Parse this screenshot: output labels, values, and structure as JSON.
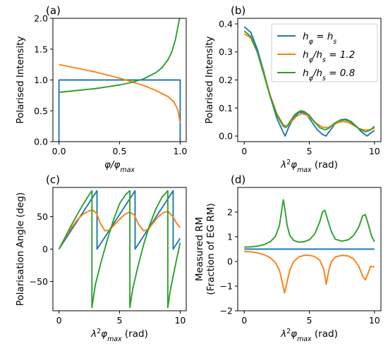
{
  "colors": {
    "blue": "#1f77b4",
    "orange": "#ff7f0e",
    "green": "#2ca02c"
  },
  "chart_data": [
    {
      "panel": "(a)",
      "type": "line",
      "xlabel": "φ/φ_max",
      "ylabel": "Polarised Intensity",
      "xlim": [
        -0.05,
        1.05
      ],
      "ylim": [
        0,
        2.0
      ],
      "xticks": [
        0.0,
        0.5,
        1.0
      ],
      "xticklabels": [
        "0.0",
        "0.5",
        "1.0"
      ],
      "yticks": [
        0.0,
        0.5,
        1.0,
        1.5,
        2.0
      ],
      "yticklabels": [
        "0.0",
        "0.5",
        "1.0",
        "1.5",
        "2.0"
      ],
      "grid": false,
      "series": [
        {
          "color": "blue",
          "x": [
            0,
            0,
            1,
            1
          ],
          "y": [
            0,
            1.0,
            1.0,
            0
          ]
        },
        {
          "color": "orange",
          "x": [
            0,
            0.1,
            0.2,
            0.3,
            0.4,
            0.5,
            0.6,
            0.7,
            0.8,
            0.9,
            0.95,
            0.98,
            1.0
          ],
          "y": [
            1.25,
            1.21,
            1.17,
            1.13,
            1.08,
            1.03,
            0.97,
            0.91,
            0.83,
            0.73,
            0.64,
            0.52,
            0.3
          ]
        },
        {
          "color": "green",
          "x": [
            0,
            0.1,
            0.2,
            0.3,
            0.4,
            0.5,
            0.6,
            0.7,
            0.8,
            0.85,
            0.9,
            0.93,
            0.96,
            0.98,
            1.0
          ],
          "y": [
            0.8,
            0.82,
            0.84,
            0.86,
            0.89,
            0.92,
            0.96,
            1.02,
            1.12,
            1.2,
            1.33,
            1.45,
            1.65,
            1.85,
            2.05
          ]
        }
      ]
    },
    {
      "panel": "(b)",
      "type": "line",
      "xlabel": "λ²φ_max (rad)",
      "ylabel": "Polarised Intensity",
      "xlim": [
        -0.5,
        10.5
      ],
      "ylim": [
        -0.02,
        0.42
      ],
      "xticks": [
        0,
        5,
        10
      ],
      "xticklabels": [
        "0",
        "5",
        "10"
      ],
      "yticks": [
        0.0,
        0.1,
        0.2,
        0.3,
        0.4
      ],
      "yticklabels": [
        "0.0",
        "0.1",
        "0.2",
        "0.3",
        "0.4"
      ],
      "grid": false,
      "legend": {
        "position": "top-right",
        "entries": [
          {
            "color": "blue",
            "label": "hφ = hs"
          },
          {
            "color": "orange",
            "label": "hφ/hs = 1.2"
          },
          {
            "color": "green",
            "label": "hφ/hs = 0.8"
          }
        ]
      },
      "series": [
        {
          "color": "blue",
          "x": [
            0,
            0.5,
            1.0,
            1.5,
            2.0,
            2.5,
            3.0,
            3.14,
            3.4,
            3.8,
            4.2,
            4.5,
            4.8,
            5.2,
            5.6,
            6.0,
            6.28,
            6.6,
            7.0,
            7.4,
            7.8,
            8.2,
            8.6,
            9.0,
            9.42,
            9.7,
            10.0
          ],
          "y": [
            0.39,
            0.37,
            0.31,
            0.23,
            0.14,
            0.064,
            0.013,
            0.0,
            0.03,
            0.065,
            0.084,
            0.085,
            0.076,
            0.05,
            0.023,
            0.006,
            0.0,
            0.02,
            0.045,
            0.058,
            0.06,
            0.052,
            0.035,
            0.015,
            0.0,
            0.01,
            0.02
          ]
        },
        {
          "color": "orange",
          "x": [
            0,
            0.5,
            1.0,
            1.5,
            2.0,
            2.5,
            3.0,
            3.3,
            3.6,
            4.0,
            4.4,
            4.8,
            5.2,
            5.6,
            6.0,
            6.4,
            6.8,
            7.2,
            7.6,
            8.0,
            8.4,
            8.8,
            9.2,
            9.6,
            10.0
          ],
          "y": [
            0.365,
            0.35,
            0.3,
            0.225,
            0.145,
            0.08,
            0.04,
            0.035,
            0.05,
            0.07,
            0.08,
            0.075,
            0.06,
            0.043,
            0.032,
            0.03,
            0.038,
            0.048,
            0.052,
            0.048,
            0.038,
            0.027,
            0.022,
            0.022,
            0.028
          ]
        },
        {
          "color": "green",
          "x": [
            0,
            0.5,
            1.0,
            1.5,
            2.0,
            2.5,
            3.0,
            3.2,
            3.5,
            3.9,
            4.3,
            4.6,
            5.0,
            5.4,
            5.8,
            6.2,
            6.5,
            6.9,
            7.3,
            7.7,
            8.1,
            8.5,
            8.9,
            9.3,
            9.7,
            10.0
          ],
          "y": [
            0.375,
            0.355,
            0.3,
            0.22,
            0.14,
            0.075,
            0.035,
            0.03,
            0.05,
            0.078,
            0.09,
            0.088,
            0.074,
            0.05,
            0.03,
            0.022,
            0.028,
            0.045,
            0.055,
            0.058,
            0.052,
            0.038,
            0.024,
            0.015,
            0.022,
            0.035
          ]
        }
      ]
    },
    {
      "panel": "(c)",
      "type": "line",
      "xlabel": "λ²φ_max (rad)",
      "ylabel": "Polarisation Angle (deg)",
      "xlim": [
        -0.5,
        10.5
      ],
      "ylim": [
        -95,
        95
      ],
      "xticks": [
        0,
        5,
        10
      ],
      "xticklabels": [
        "0",
        "5",
        "10"
      ],
      "yticks": [
        -50,
        0,
        50
      ],
      "yticklabels": [
        "−50",
        "0",
        "50"
      ],
      "grid": false,
      "series": [
        {
          "color": "blue",
          "x": [
            0,
            3.14,
            3.14,
            6.28,
            6.28,
            9.42,
            9.42,
            10.0
          ],
          "y": [
            0,
            90,
            0,
            90,
            0,
            90,
            0,
            16.6
          ]
        },
        {
          "color": "orange",
          "x": [
            0,
            0.5,
            1.0,
            1.5,
            2.0,
            2.5,
            2.8,
            3.1,
            3.4,
            3.8,
            4.2,
            4.6,
            5.0,
            5.4,
            5.8,
            6.2,
            6.6,
            7.0,
            7.4,
            7.8,
            8.2,
            8.6,
            9.0,
            9.4,
            9.7,
            10.0
          ],
          "y": [
            0,
            17,
            32,
            45,
            54,
            59,
            60,
            55,
            40,
            28,
            30,
            38,
            46,
            53,
            57,
            53,
            37,
            28,
            31,
            41,
            50,
            56,
            58,
            50,
            40,
            33
          ]
        },
        {
          "color": "green",
          "x": [
            0,
            0.5,
            1.0,
            1.5,
            2.0,
            2.5,
            2.72,
            2.72,
            3.0,
            3.5,
            4.0,
            4.5,
            5.0,
            5.5,
            5.85,
            5.85,
            6.1,
            6.5,
            7.0,
            7.5,
            8.0,
            8.5,
            8.98,
            8.98,
            9.2,
            9.6,
            10.0
          ],
          "y": [
            0,
            18,
            36,
            53,
            69,
            84,
            90,
            -90,
            -55,
            -18,
            15,
            45,
            70,
            84,
            90,
            -90,
            -60,
            -28,
            8,
            38,
            62,
            80,
            90,
            -90,
            -62,
            -25,
            10
          ]
        }
      ]
    },
    {
      "panel": "(d)",
      "type": "line",
      "xlabel": "λ²φ_max (rad)",
      "ylabel": "Measured RM\n(Fraction of EG RM)",
      "xlim": [
        -0.5,
        10.5
      ],
      "ylim": [
        -2.0,
        3.0
      ],
      "xticks": [
        0,
        5,
        10
      ],
      "xticklabels": [
        "0",
        "5",
        "10"
      ],
      "yticks": [
        -2,
        -1,
        0,
        1,
        2
      ],
      "yticklabels": [
        "−2",
        "−1",
        "0",
        "1",
        "2"
      ],
      "grid": false,
      "series": [
        {
          "color": "blue",
          "x": [
            0,
            10
          ],
          "y": [
            0.5,
            0.5
          ]
        },
        {
          "color": "orange",
          "x": [
            0,
            0.5,
            1.0,
            1.5,
            2.0,
            2.4,
            2.7,
            2.9,
            3.1,
            3.3,
            3.5,
            3.8,
            4.2,
            4.6,
            5.0,
            5.4,
            5.8,
            6.1,
            6.3,
            6.5,
            6.7,
            7.0,
            7.5,
            8.0,
            8.4,
            8.8,
            9.1,
            9.3,
            9.5,
            9.7,
            10.0
          ],
          "y": [
            0.4,
            0.39,
            0.35,
            0.28,
            0.15,
            -0.05,
            -0.35,
            -0.8,
            -1.28,
            -0.8,
            -0.35,
            0.0,
            0.18,
            0.25,
            0.25,
            0.2,
            0.05,
            -0.3,
            -0.92,
            -0.35,
            0.0,
            0.18,
            0.25,
            0.22,
            0.1,
            -0.2,
            -0.6,
            -0.75,
            -0.5,
            -0.2,
            -0.22
          ]
        },
        {
          "color": "green",
          "x": [
            0,
            0.5,
            1.0,
            1.5,
            2.0,
            2.4,
            2.7,
            2.9,
            3.0,
            3.1,
            3.3,
            3.5,
            3.8,
            4.2,
            4.6,
            5.0,
            5.4,
            5.8,
            6.0,
            6.2,
            6.4,
            6.7,
            7.0,
            7.5,
            8.0,
            8.4,
            8.8,
            9.1,
            9.3,
            9.5,
            9.8,
            10.0
          ],
          "y": [
            0.58,
            0.59,
            0.62,
            0.68,
            0.8,
            1.02,
            1.45,
            2.15,
            2.5,
            2.2,
            1.45,
            1.05,
            0.85,
            0.78,
            0.8,
            0.88,
            1.1,
            1.6,
            2.0,
            2.07,
            1.7,
            1.2,
            0.9,
            0.82,
            0.88,
            1.05,
            1.4,
            1.85,
            1.9,
            1.55,
            1.0,
            0.8
          ]
        }
      ]
    }
  ]
}
